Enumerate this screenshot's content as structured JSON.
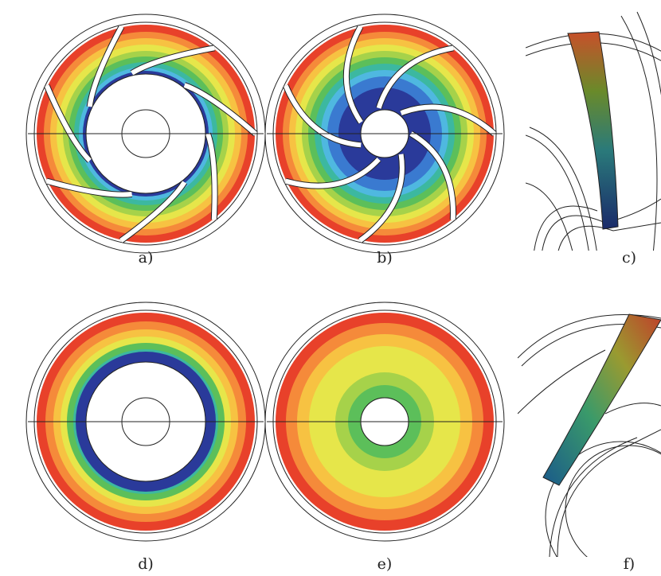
{
  "labels": [
    "a)",
    "b)",
    "c)",
    "d)",
    "e)",
    "f)"
  ]
}
